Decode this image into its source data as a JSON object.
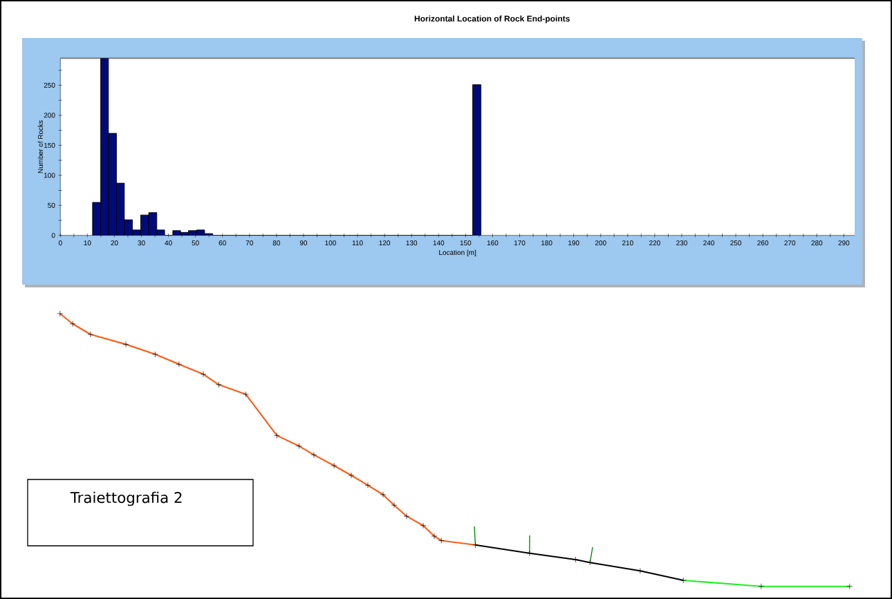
{
  "chart_data": [
    {
      "type": "histogram",
      "title": "Horizontal Location of Rock End-points",
      "xlabel": "Location [m]",
      "ylabel": "Number of Rocks",
      "color": "#000a78",
      "bins": [
        11.9,
        14.9,
        17.8,
        20.8,
        23.7,
        26.7,
        29.7,
        32.7,
        35.7,
        38.6,
        41.6,
        44.5,
        47.4,
        50.4,
        53.4,
        56.4,
        152.6,
        155.7
      ],
      "values": [
        55,
        295,
        170,
        87,
        26,
        9,
        34,
        38,
        9,
        0,
        8,
        5,
        8,
        9,
        3,
        0,
        251
      ],
      "xlim": [
        0,
        294
      ],
      "ylim": [
        0,
        295
      ],
      "xticks": [
        0,
        {
          "value": 5,
          "label": null
        },
        10,
        {
          "value": 15,
          "label": null
        },
        20,
        {
          "value": 25,
          "label": null
        },
        30,
        {
          "value": 35,
          "label": null
        },
        40,
        {
          "value": 45,
          "label": null
        },
        50,
        {
          "value": 55,
          "label": null
        },
        60,
        {
          "value": 65,
          "label": null
        },
        70,
        {
          "value": 75,
          "label": null
        },
        80,
        {
          "value": 85,
          "label": null
        },
        90,
        {
          "value": 95,
          "label": null
        },
        100,
        {
          "value": 105,
          "label": null
        },
        110,
        {
          "value": 115,
          "label": null
        },
        120,
        {
          "value": 125,
          "label": null
        },
        130,
        {
          "value": 135,
          "label": null
        },
        140,
        {
          "value": 145,
          "label": null
        },
        150,
        {
          "value": 155,
          "label": null
        },
        160,
        {
          "value": 165,
          "label": null
        },
        170,
        {
          "value": 175,
          "label": null
        },
        180,
        {
          "value": 185,
          "label": null
        },
        190,
        {
          "value": 195,
          "label": null
        },
        200,
        {
          "value": 205,
          "label": null
        },
        210,
        {
          "value": 215,
          "label": null
        },
        220,
        {
          "value": 225,
          "label": null
        },
        230,
        {
          "value": 235,
          "label": null
        },
        240,
        {
          "value": 245,
          "label": null
        },
        250,
        {
          "value": 255,
          "label": null
        },
        260,
        {
          "value": 265,
          "label": null
        },
        270,
        {
          "value": 275,
          "label": null
        },
        280,
        {
          "value": 285,
          "label": null
        },
        290
      ],
      "yticks": [
        0,
        {
          "value": 25,
          "label": null
        },
        50,
        {
          "value": 75,
          "label": null
        },
        100,
        {
          "value": 125,
          "label": null
        },
        150,
        {
          "value": 175,
          "label": null
        },
        200,
        {
          "value": 225,
          "label": null
        },
        250,
        {
          "value": 275,
          "label": null
        }
      ],
      "grid": false
    },
    {
      "type": "other",
      "annotations": [
        "Traiettografia 2"
      ]
    }
  ]
}
